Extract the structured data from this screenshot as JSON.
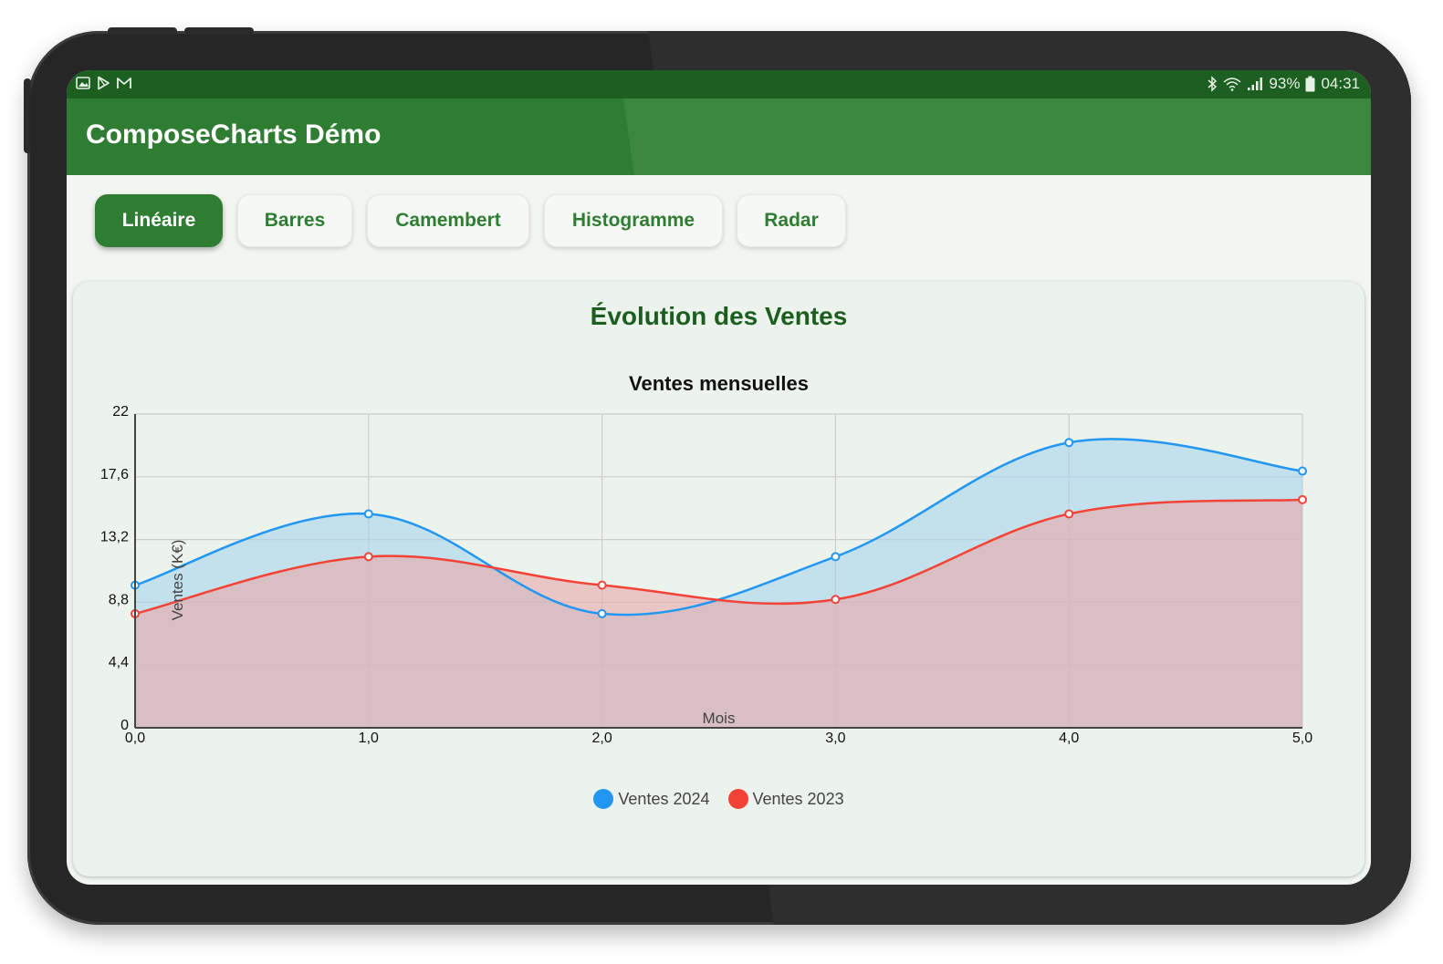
{
  "status_bar": {
    "left_icons": [
      "image-icon",
      "play-store-icon",
      "gmail-icon"
    ],
    "battery": "93%",
    "time": "04:31"
  },
  "app": {
    "title": "ComposeCharts Démo"
  },
  "tabs": [
    {
      "label": "Linéaire",
      "active": true
    },
    {
      "label": "Barres",
      "active": false
    },
    {
      "label": "Camembert",
      "active": false
    },
    {
      "label": "Histogramme",
      "active": false
    },
    {
      "label": "Radar",
      "active": false
    }
  ],
  "card": {
    "title": "Évolution des Ventes"
  },
  "chart_data": {
    "type": "area",
    "title": "Ventes mensuelles",
    "xlabel": "Mois",
    "ylabel": "Ventes (K€)",
    "x": [
      0,
      1,
      2,
      3,
      4,
      5
    ],
    "x_tick_labels": [
      "0,0",
      "1,0",
      "2,0",
      "3,0",
      "4,0",
      "5,0"
    ],
    "y_tick_labels": [
      "0",
      "4,4",
      "8,8",
      "13,2",
      "17,6",
      "22"
    ],
    "y_ticks": [
      0,
      4.4,
      8.8,
      13.2,
      17.6,
      22
    ],
    "xlim": [
      0,
      5
    ],
    "ylim": [
      0,
      22
    ],
    "grid": true,
    "legend_position": "bottom-center",
    "series": [
      {
        "name": "Ventes 2024",
        "color": "#2196f3",
        "fill": "#a8d4ee",
        "values": [
          10,
          15,
          8,
          12,
          20,
          18
        ]
      },
      {
        "name": "Ventes 2023",
        "color": "#f44336",
        "fill": "#e8a8a8",
        "values": [
          8,
          12,
          10,
          9,
          15,
          16
        ]
      }
    ]
  }
}
